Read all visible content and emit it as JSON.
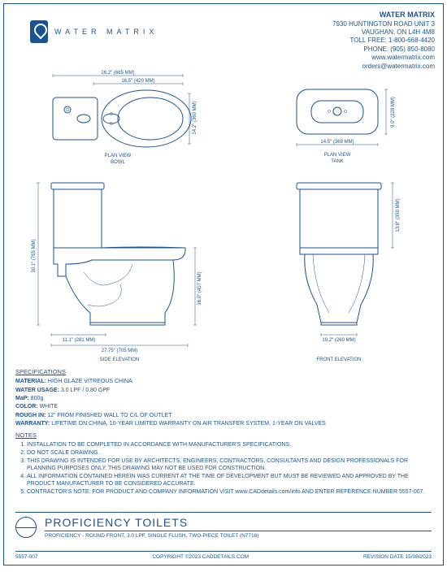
{
  "colors": {
    "primary": "#1a5490",
    "background": "#ffffff"
  },
  "header": {
    "company": "WATER MATRIX",
    "address1": "7930 HUNTINGTON ROAD UNIT 3",
    "address2": "VAUGHAN, ON L4H 4M8",
    "tollfree": "TOLL FREE: 1-800-668-4420",
    "phone": "PHONE: (905) 850-8080",
    "web": "www.watermatrix.com",
    "email": "orders@watermatrix.com"
  },
  "logo": {
    "text": "WATER MATRIX"
  },
  "views": {
    "plan_bowl": {
      "label1": "PLAN VIEW",
      "label2": "BOWL",
      "dim_width_full": "26.2\" (665 MM)",
      "dim_width_mid": "16.5\" (420 MM)",
      "dim_height": "14.2\" (360 MM)"
    },
    "plan_tank": {
      "label1": "PLAN VIEW",
      "label2": "TANK",
      "dim_width": "14.5\" (368 MM)",
      "dim_height": "9.0\" (228 MM)"
    },
    "side": {
      "label": "SIDE ELEVATION",
      "dim_total_h": "30.1\" (765 MM)",
      "dim_seat_h": "16.0\" (407 MM)",
      "dim_outlet": "11.1\" (281 MM)",
      "dim_depth": "27.75\" (705 MM)"
    },
    "front": {
      "label": "FRONT ELEVATION",
      "dim_base": "10.2\" (260 MM)",
      "dim_tank_h": "13.8\" (350 MM)"
    }
  },
  "specs": {
    "title": "SPECIFICATIONS",
    "rows": [
      {
        "label": "MATERIAL:",
        "value": "HIGH GLAZE VITREOUS CHINA"
      },
      {
        "label": "WATER USAGE:",
        "value": "3.0 LPF / 0.80 GPF"
      },
      {
        "label": "MaP:",
        "value": "800g"
      },
      {
        "label": "COLOR:",
        "value": "WHITE"
      },
      {
        "label": "ROUGH IN:",
        "value": "12\" FROM FINISHED WALL TO C/L OF OUTLET"
      },
      {
        "label": "WARRANTY:",
        "value": "LIFETIME ON CHINA, 10-YEAR LIMITED WARRANTY ON AIR TRANSFER SYSTEM, 1-YEAR ON VALVES"
      }
    ]
  },
  "notes": {
    "title": "NOTES",
    "items": [
      "INSTALLATION TO BE COMPLETED IN ACCORDANCE WITH MANUFACTURER'S SPECIFICATIONS.",
      "DO NOT SCALE DRAWING.",
      "THIS DRAWING IS INTENDED FOR USE BY ARCHITECTS, ENGINEERS, CONTRACTORS, CONSULTANTS AND DESIGN PROFESSIONALS FOR PLANNING PURPOSES ONLY. THIS DRAWING MAY NOT BE USED FOR CONSTRUCTION.",
      "ALL INFORMATION CONTAINED HEREIN WAS CURRENT AT THE TIME OF DEVELOPMENT BUT MUST BE REVIEWED AND APPROVED BY THE PRODUCT MANUFACTURER TO BE CONSIDERED ACCURATE.",
      "CONTRACTOR'S NOTE: FOR PRODUCT AND COMPANY INFORMATION VISIT www.CADdetails.com/info AND ENTER REFERENCE NUMBER 5557-007."
    ]
  },
  "title_block": {
    "main": "PROFICIENCY TOILETS",
    "sub": "PROFICIENCY - ROUND FRONT, 3.0 LPF, SINGLE FLUSH, TWO-PIECE TOILET (N7716)"
  },
  "footer": {
    "ref": "5557-007",
    "copyright": "COPYRIGHT ©2023 CADDETAILS.COM",
    "revision": "REVISION DATE 15/08/2023"
  }
}
